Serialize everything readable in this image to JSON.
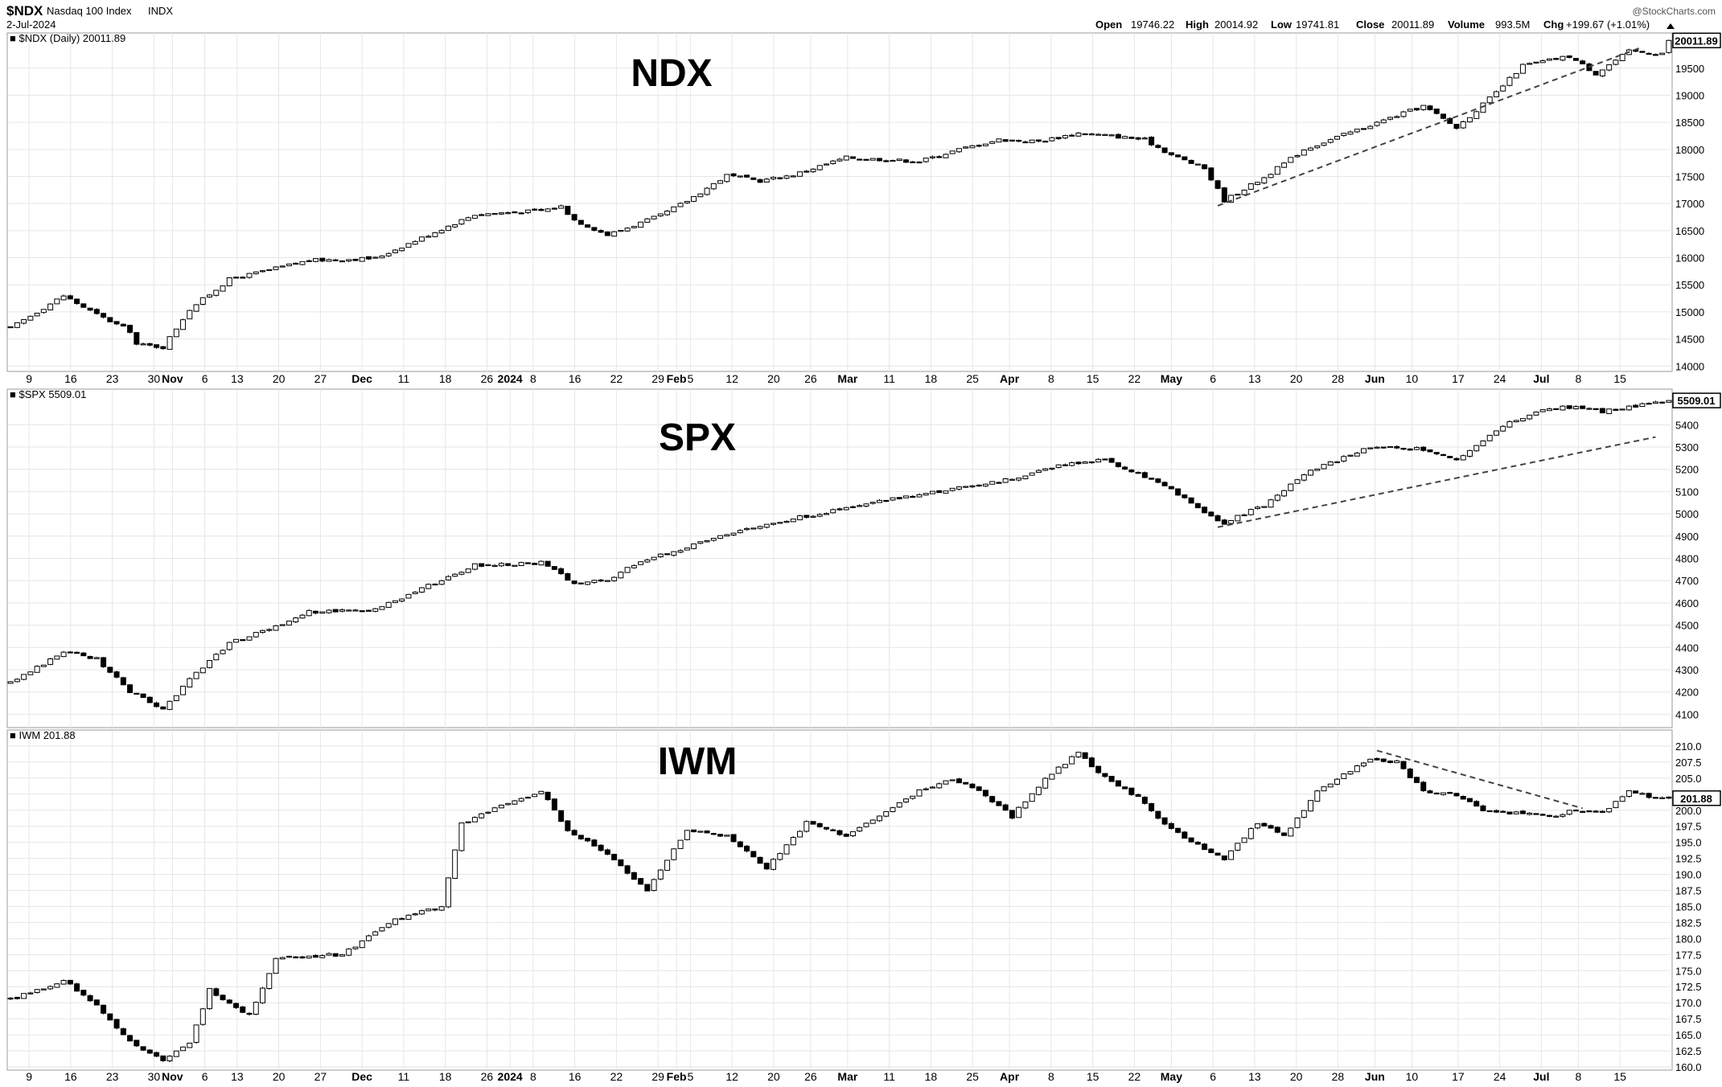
{
  "header": {
    "symbol": "$NDX",
    "name": "Nasdaq 100 Index",
    "exchange": "INDX",
    "date": "2-Jul-2024",
    "credit": "@StockCharts.com",
    "quote": {
      "open_label": "Open",
      "open": "19746.22",
      "high_label": "High",
      "high": "20014.92",
      "low_label": "Low",
      "low": "19741.81",
      "close_label": "Close",
      "close": "20011.89",
      "volume_label": "Volume",
      "volume": "993.5M",
      "chg_label": "Chg",
      "chg": "+199.67 (+1.01%)",
      "chg_icon": "up-triangle-icon"
    }
  },
  "x_axis": {
    "labels": [
      {
        "text": "9",
        "bold": false
      },
      {
        "text": "16",
        "bold": false
      },
      {
        "text": "23",
        "bold": false
      },
      {
        "text": "30",
        "bold": false
      },
      {
        "text": "Nov",
        "bold": true
      },
      {
        "text": "6",
        "bold": false
      },
      {
        "text": "13",
        "bold": false
      },
      {
        "text": "20",
        "bold": false
      },
      {
        "text": "27",
        "bold": false
      },
      {
        "text": "Dec",
        "bold": true
      },
      {
        "text": "11",
        "bold": false
      },
      {
        "text": "18",
        "bold": false
      },
      {
        "text": "26",
        "bold": false
      },
      {
        "text": "2024",
        "bold": true
      },
      {
        "text": "8",
        "bold": false
      },
      {
        "text": "16",
        "bold": false
      },
      {
        "text": "22",
        "bold": false
      },
      {
        "text": "29",
        "bold": false
      },
      {
        "text": "Feb",
        "bold": true
      },
      {
        "text": "5",
        "bold": false
      },
      {
        "text": "12",
        "bold": false
      },
      {
        "text": "20",
        "bold": false
      },
      {
        "text": "26",
        "bold": false
      },
      {
        "text": "Mar",
        "bold": true
      },
      {
        "text": "11",
        "bold": false
      },
      {
        "text": "18",
        "bold": false
      },
      {
        "text": "25",
        "bold": false
      },
      {
        "text": "Apr",
        "bold": true
      },
      {
        "text": "8",
        "bold": false
      },
      {
        "text": "15",
        "bold": false
      },
      {
        "text": "22",
        "bold": false
      },
      {
        "text": "May",
        "bold": true
      },
      {
        "text": "6",
        "bold": false
      },
      {
        "text": "13",
        "bold": false
      },
      {
        "text": "20",
        "bold": false
      },
      {
        "text": "28",
        "bold": false
      },
      {
        "text": "Jun",
        "bold": true
      },
      {
        "text": "10",
        "bold": false
      },
      {
        "text": "17",
        "bold": false
      },
      {
        "text": "24",
        "bold": false
      },
      {
        "text": "Jul",
        "bold": true
      },
      {
        "text": "8",
        "bold": false
      },
      {
        "text": "15",
        "bold": false
      }
    ]
  },
  "chart_data": [
    {
      "type": "candlestick",
      "legend": "$NDX (Daily) 20011.89",
      "big_label": "NDX",
      "last_value": "20011.89",
      "ylim": [
        13900,
        20150
      ],
      "y_ticks": [
        14000,
        14500,
        15000,
        15500,
        16000,
        16500,
        17000,
        17500,
        18000,
        18500,
        19000,
        19500
      ],
      "y_tick_labels": [
        "14000",
        "14500",
        "15000",
        "15500",
        "16000",
        "16500",
        "17000",
        "17500",
        "18000",
        "18500",
        "19000",
        "19500"
      ],
      "anchors": [
        [
          0,
          14700
        ],
        [
          8,
          15300
        ],
        [
          13,
          14950
        ],
        [
          18,
          14650
        ],
        [
          19,
          14400
        ],
        [
          23,
          14350
        ],
        [
          27,
          15050
        ],
        [
          33,
          15600
        ],
        [
          45,
          15950
        ],
        [
          55,
          15990
        ],
        [
          70,
          16800
        ],
        [
          80,
          16870
        ],
        [
          83,
          16950
        ],
        [
          85,
          16700
        ],
        [
          90,
          16420
        ],
        [
          94,
          16600
        ],
        [
          98,
          16780
        ],
        [
          102,
          17050
        ],
        [
          108,
          17520
        ],
        [
          113,
          17420
        ],
        [
          118,
          17530
        ],
        [
          126,
          17850
        ],
        [
          137,
          17780
        ],
        [
          143,
          18000
        ],
        [
          149,
          18180
        ],
        [
          155,
          18150
        ],
        [
          161,
          18300
        ],
        [
          166,
          18250
        ],
        [
          171,
          18180
        ],
        [
          175,
          17900
        ],
        [
          180,
          17650
        ],
        [
          183,
          17060
        ],
        [
          189,
          17480
        ],
        [
          195,
          18000
        ],
        [
          205,
          18450
        ],
        [
          213,
          18800
        ],
        [
          218,
          18400
        ],
        [
          224,
          19050
        ],
        [
          228,
          19550
        ],
        [
          235,
          19720
        ],
        [
          239,
          19400
        ],
        [
          244,
          19810
        ],
        [
          248,
          19780
        ]
      ],
      "trendline": {
        "from": [
          182,
          16960
        ],
        "to": [
          246,
          19890
        ],
        "style": "dashed"
      }
    },
    {
      "type": "candlestick",
      "legend": "$SPX 5509.01",
      "big_label": "SPX",
      "last_value": "5509.01",
      "ylim": [
        4040,
        5560
      ],
      "y_ticks": [
        4100,
        4200,
        4300,
        4400,
        4500,
        4600,
        4700,
        4800,
        4900,
        5000,
        5100,
        5200,
        5300,
        5400
      ],
      "y_tick_labels": [
        "4100",
        "4200",
        "4300",
        "4400",
        "4500",
        "4600",
        "4700",
        "4800",
        "4900",
        "5000",
        "5100",
        "5200",
        "5300",
        "5400"
      ],
      "anchors": [
        [
          0,
          4240
        ],
        [
          8,
          4380
        ],
        [
          13,
          4350
        ],
        [
          18,
          4200
        ],
        [
          23,
          4120
        ],
        [
          27,
          4260
        ],
        [
          33,
          4420
        ],
        [
          38,
          4470
        ],
        [
          45,
          4560
        ],
        [
          55,
          4570
        ],
        [
          70,
          4770
        ],
        [
          80,
          4780
        ],
        [
          85,
          4690
        ],
        [
          90,
          4700
        ],
        [
          95,
          4790
        ],
        [
          102,
          4850
        ],
        [
          110,
          4930
        ],
        [
          120,
          4990
        ],
        [
          130,
          5050
        ],
        [
          140,
          5100
        ],
        [
          150,
          5150
        ],
        [
          160,
          5230
        ],
        [
          165,
          5240
        ],
        [
          170,
          5180
        ],
        [
          175,
          5110
        ],
        [
          180,
          5000
        ],
        [
          183,
          4960
        ],
        [
          189,
          5040
        ],
        [
          195,
          5180
        ],
        [
          205,
          5300
        ],
        [
          213,
          5290
        ],
        [
          218,
          5240
        ],
        [
          224,
          5380
        ],
        [
          230,
          5460
        ],
        [
          235,
          5480
        ],
        [
          240,
          5460
        ],
        [
          244,
          5480
        ],
        [
          248,
          5505
        ]
      ],
      "trendline": {
        "from": [
          182,
          4940
        ],
        "to": [
          248,
          5345
        ],
        "style": "dashed"
      }
    },
    {
      "type": "candlestick",
      "legend": "IWM 201.88",
      "big_label": "IWM",
      "last_value": "201.88",
      "ylim": [
        159.5,
        212.5
      ],
      "y_ticks": [
        160,
        162.5,
        165,
        167.5,
        170,
        172.5,
        175,
        177.5,
        180,
        182.5,
        185,
        187.5,
        190,
        192.5,
        195,
        197.5,
        200,
        202.5,
        205,
        207.5,
        210
      ],
      "y_tick_labels": [
        "160.0",
        "162.5",
        "165.0",
        "167.5",
        "170.0",
        "172.5",
        "175.0",
        "177.5",
        "180.0",
        "182.5",
        "185.0",
        "187.5",
        "190.0",
        "192.5",
        "195.0",
        "197.5",
        "200.0",
        "202.5",
        "205.0",
        "207.5",
        "210.0"
      ],
      "anchors": [
        [
          0,
          170.5
        ],
        [
          8,
          173.5
        ],
        [
          13,
          169.5
        ],
        [
          18,
          164
        ],
        [
          23,
          161
        ],
        [
          27,
          163.5
        ],
        [
          30,
          172
        ],
        [
          36,
          168
        ],
        [
          40,
          177
        ],
        [
          50,
          177.5
        ],
        [
          58,
          183
        ],
        [
          65,
          185
        ],
        [
          68,
          198
        ],
        [
          75,
          201
        ],
        [
          80,
          203
        ],
        [
          84,
          197
        ],
        [
          90,
          193
        ],
        [
          96,
          187.5
        ],
        [
          102,
          197
        ],
        [
          108,
          196
        ],
        [
          114,
          191
        ],
        [
          120,
          198
        ],
        [
          126,
          196
        ],
        [
          131,
          199
        ],
        [
          137,
          203
        ],
        [
          142,
          205
        ],
        [
          146,
          203
        ],
        [
          151,
          199
        ],
        [
          156,
          205
        ],
        [
          161,
          209
        ],
        [
          165,
          205
        ],
        [
          170,
          202
        ],
        [
          175,
          197
        ],
        [
          180,
          194
        ],
        [
          183,
          192.5
        ],
        [
          188,
          198
        ],
        [
          192,
          196
        ],
        [
          197,
          203
        ],
        [
          205,
          208
        ],
        [
          209,
          207.5
        ],
        [
          213,
          203
        ],
        [
          218,
          202.5
        ],
        [
          222,
          200
        ],
        [
          228,
          199.5
        ],
        [
          232,
          199
        ],
        [
          236,
          200
        ],
        [
          240,
          199.5
        ],
        [
          244,
          203
        ],
        [
          248,
          201.9
        ]
      ],
      "trendline": {
        "from": [
          206,
          209.3
        ],
        "to": [
          237,
          200.3
        ],
        "style": "dashed"
      }
    }
  ]
}
